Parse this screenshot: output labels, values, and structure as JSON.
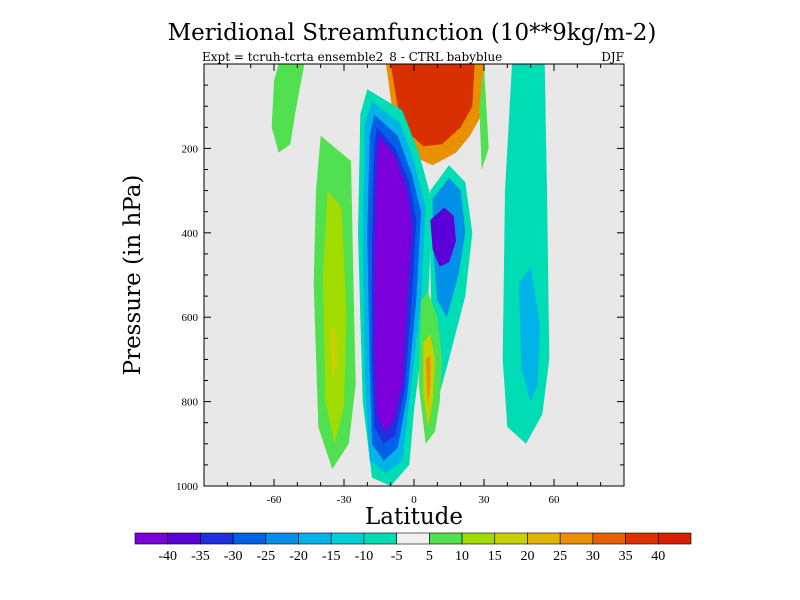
{
  "chart_data": {
    "type": "heatmap",
    "title": "Meridional Streamfunction (10**9kg/m-2)",
    "subtitle_left": "Expt = tcruh-tcrta   ensemble2_8 - CTRL babyblue",
    "subtitle_right": "DJF",
    "xlabel": "Latitude",
    "ylabel": "Pressure (in hPa)",
    "xlim": [
      -90,
      90
    ],
    "ylim": [
      1000,
      0
    ],
    "x_ticks": [
      -60,
      -30,
      0,
      30,
      60
    ],
    "x_tick_labels": [
      "-60",
      "-30",
      "0",
      "30",
      "60"
    ],
    "y_ticks": [
      200,
      400,
      600,
      800,
      1000
    ],
    "y_tick_labels": [
      "200",
      "400",
      "600",
      "800",
      "1000"
    ],
    "background_color": "#e8e8e8",
    "colorbar": {
      "colors": [
        "#7b00dc",
        "#5a00d8",
        "#2030e0",
        "#0060e8",
        "#0090e8",
        "#00b4e8",
        "#00d0d8",
        "#00dcb4",
        "#f0f0f0",
        "#50e050",
        "#a0dc00",
        "#c8d000",
        "#e0b400",
        "#e89000",
        "#e86000",
        "#e03000",
        "#d82000"
      ],
      "labels": [
        "-40",
        "-35",
        "-30",
        "-25",
        "-20",
        "-15",
        "-10",
        "-5",
        "5",
        "10",
        "15",
        "20",
        "25",
        "30",
        "35",
        "40"
      ]
    },
    "contour_regions": [
      {
        "name": "nh-upper-positive-cell",
        "color": "#e89000",
        "points": [
          [
            -15,
            0
          ],
          [
            30,
            0
          ],
          [
            29,
            120
          ],
          [
            24,
            170
          ],
          [
            18,
            210
          ],
          [
            8,
            240
          ],
          [
            -2,
            215
          ],
          [
            -8,
            160
          ],
          [
            -12,
            0
          ]
        ]
      },
      {
        "name": "nh-upper-positive-core",
        "color": "#d83000",
        "points": [
          [
            -10,
            0
          ],
          [
            26,
            0
          ],
          [
            25,
            100
          ],
          [
            20,
            150
          ],
          [
            12,
            190
          ],
          [
            4,
            195
          ],
          [
            -3,
            160
          ],
          [
            -7,
            100
          ]
        ]
      },
      {
        "name": "sh-upper-green-lobe",
        "color": "#50e050",
        "points": [
          [
            -58,
            0
          ],
          [
            -47,
            0
          ],
          [
            -51,
            120
          ],
          [
            -53,
            190
          ],
          [
            -58,
            210
          ],
          [
            -61,
            150
          ],
          [
            -60,
            40
          ]
        ]
      },
      {
        "name": "sh-green-outer",
        "color": "#50e050",
        "points": [
          [
            -40,
            170
          ],
          [
            -27,
            230
          ],
          [
            -26,
            500
          ],
          [
            -25,
            760
          ],
          [
            -28,
            900
          ],
          [
            -35,
            960
          ],
          [
            -41,
            860
          ],
          [
            -43,
            520
          ],
          [
            -42,
            300
          ]
        ]
      },
      {
        "name": "sh-yellowgreen",
        "color": "#a0dc00",
        "points": [
          [
            -37,
            300
          ],
          [
            -31,
            340
          ],
          [
            -29,
            600
          ],
          [
            -30,
            810
          ],
          [
            -34,
            900
          ],
          [
            -38,
            800
          ],
          [
            -39,
            500
          ]
        ]
      },
      {
        "name": "sh-yellow-core",
        "color": "#c8d000",
        "points": [
          [
            -36,
            620
          ],
          [
            -33,
            640
          ],
          [
            -33,
            720
          ],
          [
            -35,
            740
          ]
        ]
      },
      {
        "name": "tropical-negative-outer",
        "color": "#00dcb4",
        "points": [
          [
            -20,
            60
          ],
          [
            -5,
            110
          ],
          [
            2,
            210
          ],
          [
            8,
            330
          ],
          [
            6,
            560
          ],
          [
            0,
            820
          ],
          [
            -2,
            950
          ],
          [
            -10,
            1000
          ],
          [
            -18,
            980
          ],
          [
            -22,
            800
          ],
          [
            -24,
            400
          ],
          [
            -23,
            120
          ]
        ]
      },
      {
        "name": "tropical-negative-ring1",
        "color": "#00b4e8",
        "points": [
          [
            -18,
            90
          ],
          [
            -6,
            140
          ],
          [
            0,
            230
          ],
          [
            5,
            340
          ],
          [
            3,
            560
          ],
          [
            -2,
            800
          ],
          [
            -5,
            940
          ],
          [
            -12,
            970
          ],
          [
            -19,
            940
          ],
          [
            -21,
            760
          ],
          [
            -22,
            400
          ],
          [
            -21,
            140
          ]
        ]
      },
      {
        "name": "tropical-negative-ring2",
        "color": "#0060e8",
        "points": [
          [
            -17,
            120
          ],
          [
            -7,
            170
          ],
          [
            -1,
            260
          ],
          [
            3,
            350
          ],
          [
            1,
            560
          ],
          [
            -3,
            790
          ],
          [
            -7,
            910
          ],
          [
            -13,
            940
          ],
          [
            -18,
            900
          ],
          [
            -19,
            730
          ],
          [
            -20,
            400
          ],
          [
            -19,
            170
          ]
        ]
      },
      {
        "name": "tropical-negative-ring3",
        "color": "#2030e0",
        "points": [
          [
            -16,
            150
          ],
          [
            -8,
            200
          ],
          [
            -2,
            280
          ],
          [
            1,
            370
          ],
          [
            -1,
            560
          ],
          [
            -4,
            770
          ],
          [
            -8,
            880
          ],
          [
            -13,
            900
          ],
          [
            -17,
            860
          ],
          [
            -18,
            700
          ],
          [
            -18,
            420
          ],
          [
            -17,
            200
          ]
        ]
      },
      {
        "name": "tropical-negative-core",
        "color": "#7b00dc",
        "points": [
          [
            -15,
            170
          ],
          [
            -8,
            220
          ],
          [
            -3,
            300
          ],
          [
            -1,
            390
          ],
          [
            -3,
            560
          ],
          [
            -5,
            760
          ],
          [
            -9,
            850
          ],
          [
            -13,
            870
          ],
          [
            -16,
            830
          ],
          [
            -17,
            680
          ],
          [
            -17,
            430
          ],
          [
            -16,
            230
          ]
        ]
      },
      {
        "name": "nh-negative-outer",
        "color": "#00dcb4",
        "points": [
          [
            7,
            300
          ],
          [
            15,
            240
          ],
          [
            22,
            280
          ],
          [
            25,
            400
          ],
          [
            22,
            550
          ],
          [
            14,
            720
          ],
          [
            10,
            800
          ],
          [
            8,
            700
          ],
          [
            7,
            480
          ]
        ]
      },
      {
        "name": "nh-negative-ring",
        "color": "#0090e8",
        "points": [
          [
            8,
            320
          ],
          [
            15,
            270
          ],
          [
            20,
            300
          ],
          [
            22,
            400
          ],
          [
            19,
            500
          ],
          [
            14,
            600
          ],
          [
            10,
            560
          ],
          [
            8,
            420
          ]
        ]
      },
      {
        "name": "nh-negative-core",
        "color": "#5a00d8",
        "points": [
          [
            7,
            370
          ],
          [
            13,
            340
          ],
          [
            17,
            360
          ],
          [
            18,
            420
          ],
          [
            15,
            470
          ],
          [
            11,
            480
          ],
          [
            8,
            440
          ]
        ]
      },
      {
        "name": "nh-lower-positive-green",
        "color": "#50e050",
        "points": [
          [
            3,
            560
          ],
          [
            6,
            540
          ],
          [
            10,
            600
          ],
          [
            12,
            700
          ],
          [
            11,
            800
          ],
          [
            9,
            870
          ],
          [
            5,
            900
          ],
          [
            2,
            760
          ]
        ]
      },
      {
        "name": "nh-lower-positive-yellow",
        "color": "#c8d000",
        "points": [
          [
            4,
            660
          ],
          [
            7,
            640
          ],
          [
            9,
            700
          ],
          [
            8,
            800
          ],
          [
            6,
            860
          ],
          [
            4,
            780
          ]
        ]
      },
      {
        "name": "nh-lower-positive-core",
        "color": "#e89000",
        "points": [
          [
            5,
            700
          ],
          [
            7,
            690
          ],
          [
            7,
            760
          ],
          [
            6,
            810
          ]
        ]
      },
      {
        "name": "nh-upper-green-thin",
        "color": "#50e050",
        "points": [
          [
            30,
            0
          ],
          [
            31,
            100
          ],
          [
            32,
            200
          ],
          [
            29,
            250
          ],
          [
            28,
            100
          ]
        ]
      },
      {
        "name": "nh-extratropical-outer",
        "color": "#00dcb4",
        "points": [
          [
            42,
            0
          ],
          [
            56,
            0
          ],
          [
            57,
            300
          ],
          [
            58,
            700
          ],
          [
            55,
            830
          ],
          [
            48,
            900
          ],
          [
            40,
            860
          ],
          [
            38,
            700
          ],
          [
            39,
            300
          ]
        ]
      },
      {
        "name": "nh-extratropical-inner",
        "color": "#00b4e8",
        "points": [
          [
            45,
            520
          ],
          [
            50,
            480
          ],
          [
            54,
            620
          ],
          [
            53,
            760
          ],
          [
            50,
            800
          ],
          [
            46,
            720
          ]
        ]
      }
    ]
  }
}
